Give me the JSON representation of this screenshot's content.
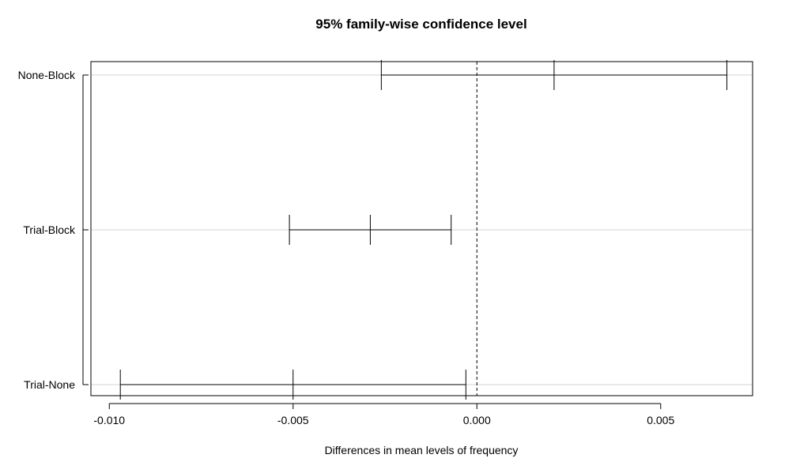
{
  "chart_data": {
    "type": "interval",
    "title": "95% family-wise confidence level",
    "xlabel": "Differences in mean levels of frequency",
    "ylabel": "",
    "xlim": [
      -0.0105,
      0.0075
    ],
    "x_ticks": [
      -0.01,
      -0.005,
      0.0,
      0.005
    ],
    "x_tick_labels": [
      "-0.010",
      "-0.005",
      "0.000",
      "0.005"
    ],
    "reference_line_x": 0.0,
    "reference_line_style": "dashed",
    "horizontal_gridlines": true,
    "comparisons": [
      {
        "label": "None-Block",
        "lower": -0.0026,
        "estimate": 0.0021,
        "upper": 0.0068
      },
      {
        "label": "Trial-Block",
        "lower": -0.0051,
        "estimate": -0.0029,
        "upper": -0.0007
      },
      {
        "label": "Trial-None",
        "lower": -0.0097,
        "estimate": -0.005,
        "upper": -0.0003
      }
    ]
  }
}
